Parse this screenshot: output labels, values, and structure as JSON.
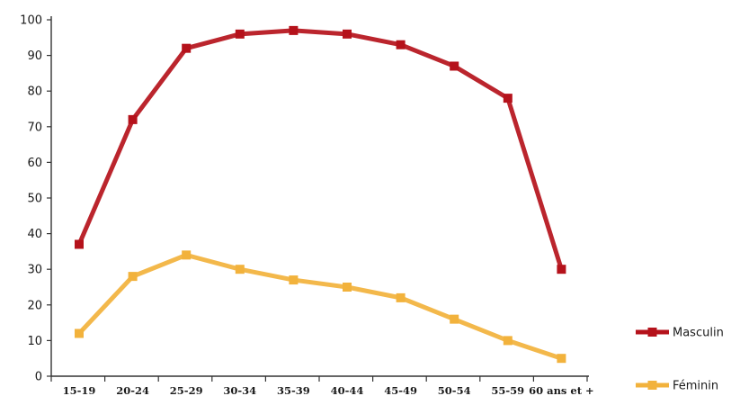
{
  "chart_data": {
    "type": "line",
    "categories": [
      "15-19",
      "20-24",
      "25-29",
      "30-34",
      "35-39",
      "40-44",
      "45-49",
      "50-54",
      "55-59",
      "60 ans et +"
    ],
    "series": [
      {
        "name": "Masculin",
        "color": "#b5121b",
        "values": [
          37,
          72,
          92,
          96,
          97,
          96,
          93,
          87,
          78,
          30
        ]
      },
      {
        "name": "Féminin",
        "color": "#f2b23c",
        "values": [
          12,
          28,
          34,
          30,
          27,
          25,
          22,
          16,
          10,
          5
        ]
      }
    ],
    "ylim": [
      0,
      100
    ],
    "yticks": [
      0,
      10,
      20,
      30,
      40,
      50,
      60,
      70,
      80,
      90,
      100
    ],
    "grid": false,
    "legend_position": "bottom-right"
  }
}
